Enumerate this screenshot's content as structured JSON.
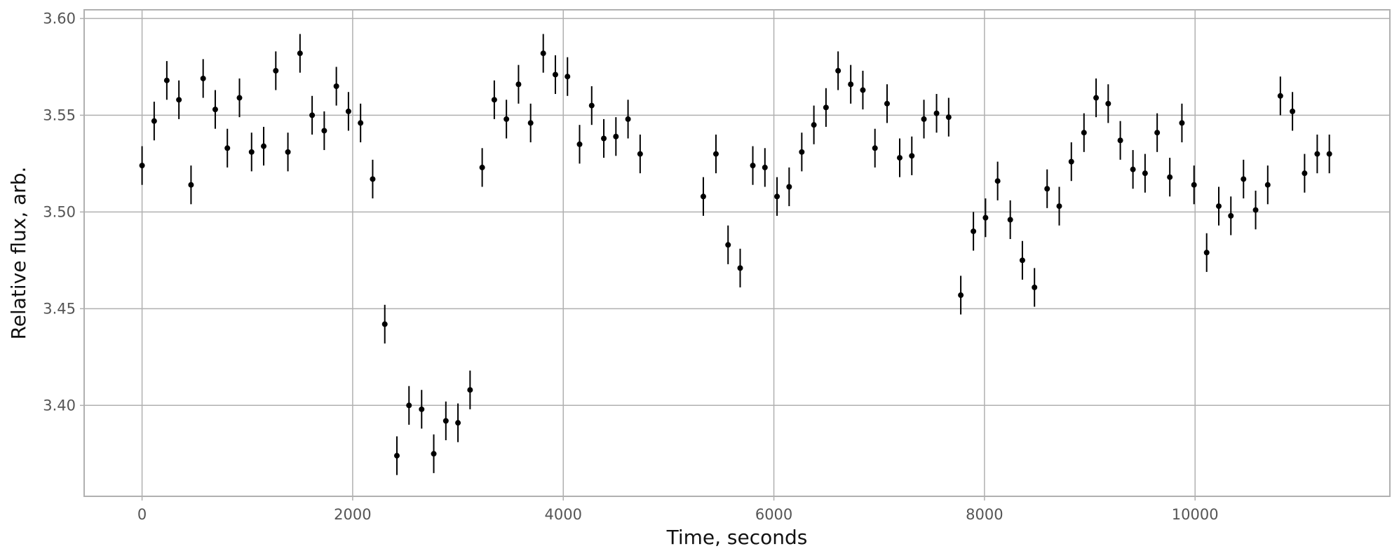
{
  "chart_data": {
    "type": "scatter",
    "title": "",
    "xlabel": "Time, seconds",
    "ylabel": "Relative flux, arb.",
    "xlim": [
      -550,
      11850
    ],
    "ylim": [
      3.353,
      3.6045
    ],
    "xticks": [
      0,
      2000,
      4000,
      6000,
      8000,
      10000
    ],
    "yticks": [
      3.4,
      3.45,
      3.5,
      3.55,
      3.6
    ],
    "xtick_labels": [
      "0",
      "2000",
      "4000",
      "6000",
      "8000",
      "10000"
    ],
    "ytick_labels": [
      "3.40",
      "3.45",
      "3.50",
      "3.55",
      "3.60"
    ],
    "grid": true,
    "legend": "none",
    "marker_color": "#000000",
    "error": 0.01,
    "points": [
      {
        "x": 0,
        "y": 3.524
      },
      {
        "x": 115,
        "y": 3.547
      },
      {
        "x": 235,
        "y": 3.568
      },
      {
        "x": 350,
        "y": 3.558
      },
      {
        "x": 465,
        "y": 3.514
      },
      {
        "x": 580,
        "y": 3.569
      },
      {
        "x": 695,
        "y": 3.553
      },
      {
        "x": 810,
        "y": 3.533
      },
      {
        "x": 925,
        "y": 3.559
      },
      {
        "x": 1040,
        "y": 3.531
      },
      {
        "x": 1155,
        "y": 3.534
      },
      {
        "x": 1270,
        "y": 3.573
      },
      {
        "x": 1385,
        "y": 3.531
      },
      {
        "x": 1500,
        "y": 3.582
      },
      {
        "x": 1615,
        "y": 3.55
      },
      {
        "x": 1730,
        "y": 3.542
      },
      {
        "x": 1845,
        "y": 3.565
      },
      {
        "x": 1960,
        "y": 3.552
      },
      {
        "x": 2075,
        "y": 3.546
      },
      {
        "x": 2190,
        "y": 3.517
      },
      {
        "x": 2305,
        "y": 3.442
      },
      {
        "x": 2420,
        "y": 3.374
      },
      {
        "x": 2535,
        "y": 3.4
      },
      {
        "x": 2655,
        "y": 3.398
      },
      {
        "x": 2770,
        "y": 3.375
      },
      {
        "x": 2885,
        "y": 3.392
      },
      {
        "x": 3000,
        "y": 3.391
      },
      {
        "x": 3115,
        "y": 3.408
      },
      {
        "x": 3230,
        "y": 3.523
      },
      {
        "x": 3345,
        "y": 3.558
      },
      {
        "x": 3460,
        "y": 3.548
      },
      {
        "x": 3575,
        "y": 3.566
      },
      {
        "x": 3690,
        "y": 3.546
      },
      {
        "x": 3810,
        "y": 3.582
      },
      {
        "x": 3925,
        "y": 3.571
      },
      {
        "x": 4040,
        "y": 3.57
      },
      {
        "x": 4155,
        "y": 3.535
      },
      {
        "x": 4270,
        "y": 3.555
      },
      {
        "x": 4385,
        "y": 3.538
      },
      {
        "x": 4500,
        "y": 3.539
      },
      {
        "x": 4615,
        "y": 3.548
      },
      {
        "x": 4730,
        "y": 3.53
      },
      {
        "x": 5330,
        "y": 3.508
      },
      {
        "x": 5450,
        "y": 3.53
      },
      {
        "x": 5565,
        "y": 3.483
      },
      {
        "x": 5680,
        "y": 3.471
      },
      {
        "x": 5800,
        "y": 3.524
      },
      {
        "x": 5915,
        "y": 3.523
      },
      {
        "x": 6030,
        "y": 3.508
      },
      {
        "x": 6145,
        "y": 3.513
      },
      {
        "x": 6265,
        "y": 3.531
      },
      {
        "x": 6380,
        "y": 3.545
      },
      {
        "x": 6495,
        "y": 3.554
      },
      {
        "x": 6610,
        "y": 3.573
      },
      {
        "x": 6730,
        "y": 3.566
      },
      {
        "x": 6845,
        "y": 3.563
      },
      {
        "x": 6960,
        "y": 3.533
      },
      {
        "x": 7075,
        "y": 3.556
      },
      {
        "x": 7195,
        "y": 3.528
      },
      {
        "x": 7310,
        "y": 3.529
      },
      {
        "x": 7425,
        "y": 3.548
      },
      {
        "x": 7545,
        "y": 3.551
      },
      {
        "x": 7660,
        "y": 3.549
      },
      {
        "x": 7775,
        "y": 3.457
      },
      {
        "x": 7895,
        "y": 3.49
      },
      {
        "x": 8010,
        "y": 3.497
      },
      {
        "x": 8125,
        "y": 3.516
      },
      {
        "x": 8245,
        "y": 3.496
      },
      {
        "x": 8360,
        "y": 3.475
      },
      {
        "x": 8475,
        "y": 3.461
      },
      {
        "x": 8595,
        "y": 3.512
      },
      {
        "x": 8710,
        "y": 3.503
      },
      {
        "x": 8825,
        "y": 3.526
      },
      {
        "x": 8945,
        "y": 3.541
      },
      {
        "x": 9060,
        "y": 3.559
      },
      {
        "x": 9175,
        "y": 3.556
      },
      {
        "x": 9290,
        "y": 3.537
      },
      {
        "x": 9410,
        "y": 3.522
      },
      {
        "x": 9525,
        "y": 3.52
      },
      {
        "x": 9640,
        "y": 3.541
      },
      {
        "x": 9760,
        "y": 3.518
      },
      {
        "x": 9875,
        "y": 3.546
      },
      {
        "x": 9990,
        "y": 3.514
      },
      {
        "x": 10110,
        "y": 3.479
      },
      {
        "x": 10225,
        "y": 3.503
      },
      {
        "x": 10340,
        "y": 3.498
      },
      {
        "x": 10460,
        "y": 3.517
      },
      {
        "x": 10575,
        "y": 3.501
      },
      {
        "x": 10690,
        "y": 3.514
      },
      {
        "x": 10810,
        "y": 3.56
      },
      {
        "x": 10925,
        "y": 3.552
      },
      {
        "x": 11040,
        "y": 3.52
      },
      {
        "x": 11160,
        "y": 3.53
      },
      {
        "x": 11275,
        "y": 3.53
      }
    ]
  }
}
